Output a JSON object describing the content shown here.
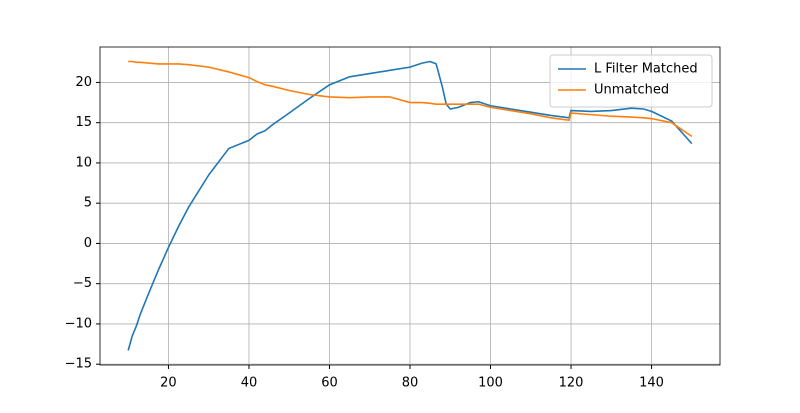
{
  "chart_data": {
    "type": "line",
    "x": [
      10,
      11,
      12,
      13,
      15,
      17.5,
      20,
      22.5,
      25,
      30,
      35,
      40,
      42,
      44,
      46,
      50,
      55,
      60,
      65,
      70,
      75,
      80,
      83,
      85,
      86.5,
      88,
      89,
      90,
      92,
      95,
      97,
      100,
      105,
      110,
      115,
      119.5,
      120,
      125,
      130,
      135,
      138,
      140,
      145,
      150
    ],
    "series": [
      {
        "name": "L Filter Matched",
        "color": "#1f77b4",
        "values": [
          -13.3,
          -11.5,
          -10.3,
          -8.8,
          -6.3,
          -3.3,
          -0.5,
          2.1,
          4.5,
          8.5,
          11.8,
          12.8,
          13.6,
          14.0,
          14.8,
          16.2,
          18.0,
          19.7,
          20.7,
          21.1,
          21.5,
          21.9,
          22.4,
          22.6,
          22.3,
          19.5,
          17.3,
          16.7,
          16.9,
          17.5,
          17.6,
          17.1,
          16.7,
          16.3,
          15.9,
          15.6,
          16.5,
          16.4,
          16.5,
          16.8,
          16.7,
          16.4,
          15.2,
          12.4
        ]
      },
      {
        "name": "Unmatched",
        "color": "#ff7f0e",
        "values": [
          22.6,
          22.6,
          22.5,
          22.5,
          22.4,
          22.3,
          22.3,
          22.3,
          22.2,
          21.9,
          21.3,
          20.6,
          20.1,
          19.7,
          19.5,
          19.0,
          18.5,
          18.2,
          18.1,
          18.2,
          18.2,
          17.5,
          17.5,
          17.4,
          17.3,
          17.3,
          17.3,
          17.3,
          17.3,
          17.3,
          17.3,
          16.9,
          16.5,
          16.1,
          15.6,
          15.3,
          16.2,
          16.0,
          15.8,
          15.7,
          15.6,
          15.5,
          15.0,
          13.3
        ]
      }
    ],
    "xlim": [
      3,
      157
    ],
    "ylim": [
      -15.1,
      24.4
    ],
    "xticks": [
      20,
      40,
      60,
      80,
      100,
      120,
      140
    ],
    "yticks": [
      {
        "value": -15,
        "label": "−15"
      },
      {
        "value": -10,
        "label": "−10"
      },
      {
        "value": -5,
        "label": "−5"
      },
      0,
      5,
      10,
      15,
      20
    ],
    "grid": true,
    "legend": "upper right"
  }
}
